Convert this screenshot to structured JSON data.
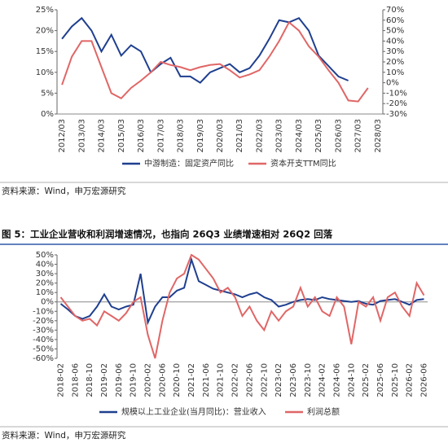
{
  "chart_data": [
    {
      "type": "line",
      "categories": [
        "2012/03",
        null,
        "2013/03",
        null,
        "2014/03",
        null,
        "2015/03",
        null,
        "2016/03",
        null,
        "2017/03",
        null,
        "2018/03",
        null,
        "2019/03",
        null,
        "2020/03",
        null,
        "2021/03",
        null,
        "2022/03",
        null,
        "2023/03",
        null,
        "2024/03",
        null,
        "2025/03",
        null,
        "2026/03",
        null,
        "2027/03",
        null,
        "2028/03"
      ],
      "series": [
        {
          "name": "中游制造：固定资产同比",
          "color": "#1f3f8f",
          "values": [
            18,
            21,
            23,
            20,
            15,
            19,
            14,
            16.5,
            15,
            10,
            12,
            13.5,
            9,
            9,
            7.5,
            10,
            11,
            12,
            10,
            11,
            14,
            18,
            22.5,
            22,
            23,
            20,
            14,
            11.5,
            9,
            8,
            null,
            null,
            null
          ]
        },
        {
          "name": "资本开支TTM同比",
          "color": "#e06666",
          "axis": "y2",
          "values": [
            -2,
            25,
            40,
            40,
            15,
            -10,
            -15,
            -5,
            2,
            10,
            20,
            17,
            15,
            12,
            15,
            17,
            18,
            12,
            5,
            8,
            12,
            25,
            40,
            58,
            50,
            35,
            25,
            12,
            0,
            -17,
            -18,
            -5,
            null
          ]
        }
      ],
      "ylim": [
        0,
        25
      ],
      "yticks": [
        {
          "value": 0,
          "label": "0%"
        },
        {
          "value": 5,
          "label": "5%"
        },
        {
          "value": 10,
          "label": "10%"
        },
        {
          "value": 15,
          "label": "15%"
        },
        {
          "value": 20,
          "label": "20%"
        },
        {
          "value": 25,
          "label": "25%"
        }
      ],
      "y2lim": [
        -30,
        70
      ],
      "y2ticks": [
        {
          "value": -30,
          "label": "-30%"
        },
        {
          "value": -20,
          "label": "-20%"
        },
        {
          "value": -10,
          "label": "-10%"
        },
        {
          "value": 0,
          "label": "0%"
        },
        {
          "value": 10,
          "label": "10%"
        },
        {
          "value": 20,
          "label": "20%"
        },
        {
          "value": 30,
          "label": "30%"
        },
        {
          "value": 40,
          "label": "40%"
        },
        {
          "value": 50,
          "label": "50%"
        },
        {
          "value": 60,
          "label": "60%"
        },
        {
          "value": 70,
          "label": "70%"
        }
      ],
      "legend": "bottom"
    },
    {
      "type": "line",
      "categories": [
        "2018-02",
        null,
        "2018-06",
        null,
        "2018-10",
        null,
        "2019-02",
        null,
        "2019-06",
        null,
        "2019-10",
        null,
        "2020-02",
        null,
        "2020-06",
        null,
        "2020-10",
        null,
        "2021-02",
        null,
        "2021-06",
        null,
        "2021-10",
        null,
        "2022-02",
        null,
        "2022-06",
        null,
        "2022-10",
        null,
        "2023-02",
        null,
        "2023-06",
        null,
        "2023-10",
        null,
        "2024-02",
        null,
        "2024-06",
        null,
        "2024-10",
        null,
        "2025-02",
        null,
        "2025-06",
        null,
        "2025-10",
        null,
        "2026-02",
        null,
        "2026-06"
      ],
      "series": [
        {
          "name": "规模以上工业企业(当月同比)：营业收入",
          "color": "#1f3f8f",
          "values": [
            -2,
            -8,
            -15,
            -18,
            -15,
            -5,
            8,
            -5,
            -8,
            -5,
            -3,
            30,
            -22,
            -5,
            5,
            5,
            12,
            15,
            45,
            22,
            18,
            14,
            12,
            10,
            8,
            5,
            8,
            10,
            5,
            2,
            -5,
            -3,
            0,
            2,
            3,
            2,
            5,
            3,
            2,
            1,
            0,
            1,
            -2,
            -3,
            1,
            2,
            3,
            0,
            -3,
            2,
            3
          ]
        },
        {
          "name": "利润总额",
          "color": "#e06666",
          "values": [
            5,
            -5,
            -15,
            -20,
            -18,
            -25,
            -10,
            -15,
            -20,
            -12,
            0,
            5,
            -35,
            -60,
            -20,
            10,
            25,
            30,
            50,
            45,
            35,
            25,
            10,
            15,
            5,
            -15,
            -5,
            -20,
            -30,
            -10,
            -20,
            -10,
            -5,
            15,
            -5,
            5,
            -10,
            -15,
            5,
            -5,
            -45,
            0,
            -5,
            5,
            -20,
            5,
            10,
            -5,
            -15,
            20,
            7
          ]
        }
      ],
      "ylim": [
        -60,
        50
      ],
      "yticks": [
        {
          "value": -60,
          "label": "-60%"
        },
        {
          "value": -50,
          "label": "-50%"
        },
        {
          "value": -40,
          "label": "-40%"
        },
        {
          "value": -30,
          "label": "-30%"
        },
        {
          "value": -20,
          "label": "-20%"
        },
        {
          "value": -10,
          "label": "-10%"
        },
        {
          "value": 0,
          "label": "0%"
        },
        {
          "value": 10,
          "label": "10%"
        },
        {
          "value": 20,
          "label": "20%"
        },
        {
          "value": 30,
          "label": "30%"
        },
        {
          "value": 40,
          "label": "40%"
        },
        {
          "value": 50,
          "label": "50%"
        }
      ],
      "legend": "bottom"
    }
  ],
  "source_1": "资料来源：Wind，申万宏源研究",
  "figure_title": "图 5：工业企业营收和利润增速情况，也指向 26Q3 业绩增速相对 26Q2 回落",
  "source_2": "资料来源：Wind，申万宏源研究"
}
